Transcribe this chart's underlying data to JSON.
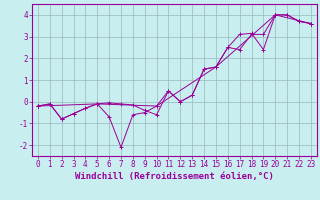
{
  "background_color": "#c8eef0",
  "line_color": "#990099",
  "grid_color": "#9ab8ba",
  "axis_color": "#990099",
  "xlabel": "Windchill (Refroidissement éolien,°C)",
  "xlim": [
    -0.5,
    23.5
  ],
  "ylim": [
    -2.5,
    4.5
  ],
  "xticks": [
    0,
    1,
    2,
    3,
    4,
    5,
    6,
    7,
    8,
    9,
    10,
    11,
    12,
    13,
    14,
    15,
    16,
    17,
    18,
    19,
    20,
    21,
    22,
    23
  ],
  "yticks": [
    -2,
    -1,
    0,
    1,
    2,
    3,
    4
  ],
  "s1_x": [
    0,
    1,
    2,
    3,
    4,
    5,
    6,
    7,
    8,
    9,
    10,
    11,
    12,
    13,
    14,
    15,
    16,
    17,
    18,
    19,
    20,
    21,
    22,
    23
  ],
  "s1_y": [
    -0.2,
    -0.1,
    -0.8,
    -0.55,
    -0.3,
    -0.1,
    -0.7,
    -2.1,
    -0.6,
    -0.5,
    -0.2,
    0.5,
    0.0,
    0.3,
    1.5,
    1.6,
    2.5,
    2.4,
    3.1,
    3.1,
    4.0,
    4.0,
    3.7,
    3.6
  ],
  "s2_x": [
    0,
    1,
    2,
    3,
    4,
    5,
    6,
    7,
    8,
    9,
    10,
    11,
    12,
    13,
    14,
    15,
    16,
    17,
    18,
    19,
    20,
    21,
    22,
    23
  ],
  "s2_y": [
    -0.2,
    -0.1,
    -0.8,
    -0.55,
    -0.3,
    -0.1,
    -0.05,
    -0.1,
    -0.15,
    -0.4,
    -0.6,
    0.5,
    0.0,
    0.3,
    1.5,
    1.6,
    2.5,
    3.1,
    3.15,
    2.4,
    4.0,
    4.0,
    3.7,
    3.6
  ],
  "s3_x": [
    0,
    5,
    10,
    15,
    20,
    23
  ],
  "s3_y": [
    -0.2,
    -0.1,
    -0.2,
    1.6,
    4.0,
    3.6
  ],
  "tick_fontsize": 5.5,
  "label_fontsize": 6.5
}
